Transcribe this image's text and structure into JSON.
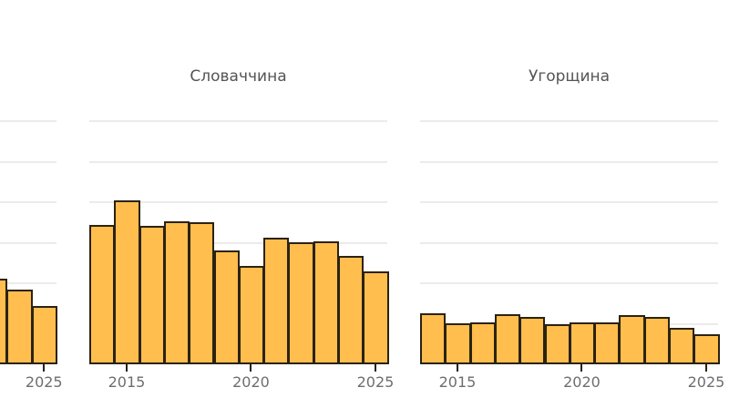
{
  "chart_data": [
    {
      "type": "bar",
      "title": "",
      "note": "Partially visible panel cut off at left edge",
      "x": [
        2023,
        2024,
        2025
      ],
      "values": [
        2.11,
        1.84,
        1.44
      ],
      "xlabel": "",
      "ylabel": "",
      "xticks": [
        "2025"
      ],
      "grid": true
    },
    {
      "type": "bar",
      "title": "Словаччина",
      "x": [
        2014,
        2015,
        2016,
        2017,
        2018,
        2019,
        2020,
        2021,
        2022,
        2023,
        2024,
        2025
      ],
      "values": [
        3.44,
        4.04,
        3.42,
        3.53,
        3.51,
        2.81,
        2.43,
        3.12,
        3.01,
        3.03,
        2.67,
        2.29
      ],
      "xlabel": "",
      "ylabel": "",
      "xticks": [
        "2015",
        "2020",
        "2025"
      ],
      "ylim": [
        0,
        6
      ],
      "grid": true
    },
    {
      "type": "bar",
      "title": "Угорщина",
      "x": [
        2014,
        2015,
        2016,
        2017,
        2018,
        2019,
        2020,
        2021,
        2022,
        2023,
        2024,
        2025
      ],
      "values": [
        1.26,
        1.01,
        1.03,
        1.24,
        1.17,
        0.99,
        1.03,
        1.03,
        1.21,
        1.17,
        0.9,
        0.74
      ],
      "xlabel": "",
      "ylabel": "",
      "xticks": [
        "2015",
        "2020",
        "2025"
      ],
      "ylim": [
        0,
        6
      ],
      "grid": true
    }
  ],
  "panels": [
    {
      "title": "",
      "ticks": [
        "2025"
      ]
    },
    {
      "title": "Словаччина",
      "ticks": [
        "2015",
        "2020",
        "2025"
      ]
    },
    {
      "title": "Угорщина",
      "ticks": [
        "2015",
        "2020",
        "2025"
      ]
    }
  ],
  "colors": {
    "bar_fill": "#ffbe4d",
    "bar_outline": "#2b2213",
    "grid": "#ebebeb",
    "text": "#555555"
  }
}
